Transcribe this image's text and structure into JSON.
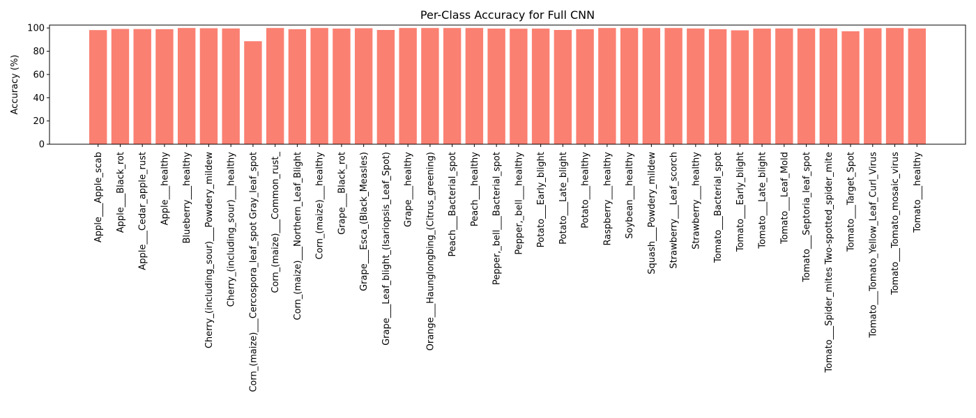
{
  "chart_data": {
    "type": "bar",
    "title": "Per-Class Accuracy for Full CNN",
    "xlabel": "",
    "ylabel": "Accuracy (%)",
    "ylim": [
      0,
      102.5
    ],
    "yticks": [
      0,
      20,
      40,
      60,
      80,
      100
    ],
    "grid": false,
    "bar_color": "#fa8072",
    "categories": [
      "Apple___Apple_scab",
      "Apple___Black_rot",
      "Apple___Cedar_apple_rust",
      "Apple___healthy",
      "Blueberry___healthy",
      "Cherry_(including_sour)___Powdery_mildew",
      "Cherry_(including_sour)___healthy",
      "Corn_(maize)___Cercospora_leaf_spot Gray_leaf_spot",
      "Corn_(maize)___Common_rust_",
      "Corn_(maize)___Northern_Leaf_Blight",
      "Corn_(maize)___healthy",
      "Grape___Black_rot",
      "Grape___Esca_(Black_Measles)",
      "Grape___Leaf_blight_(Isariopsis_Leaf_Spot)",
      "Grape___healthy",
      "Orange___Haunglongbing_(Citrus_greening)",
      "Peach___Bacterial_spot",
      "Peach___healthy",
      "Pepper,_bell___Bacterial_spot",
      "Pepper,_bell___healthy",
      "Potato___Early_blight",
      "Potato___Late_blight",
      "Potato___healthy",
      "Raspberry___healthy",
      "Soybean___healthy",
      "Squash___Powdery_mildew",
      "Strawberry___Leaf_scorch",
      "Strawberry___healthy",
      "Tomato___Bacterial_spot",
      "Tomato___Early_blight",
      "Tomato___Late_blight",
      "Tomato___Leaf_Mold",
      "Tomato___Septoria_leaf_spot",
      "Tomato___Spider_mites Two-spotted_spider_mite",
      "Tomato___Target_Spot",
      "Tomato___Tomato_Yellow_Leaf_Curl_Virus",
      "Tomato___Tomato_mosaic_virus",
      "Tomato___healthy"
    ],
    "values": [
      98.2,
      99.2,
      99.1,
      99.0,
      100.0,
      99.8,
      99.6,
      88.6,
      100.0,
      99.0,
      100.0,
      99.5,
      99.8,
      98.3,
      100.0,
      100.0,
      100.0,
      100.0,
      99.5,
      99.4,
      99.5,
      98.3,
      99.0,
      100.0,
      100.0,
      100.0,
      100.0,
      99.6,
      99.0,
      98.0,
      99.5,
      99.6,
      99.6,
      99.7,
      97.2,
      99.8,
      100.0,
      99.6
    ]
  }
}
